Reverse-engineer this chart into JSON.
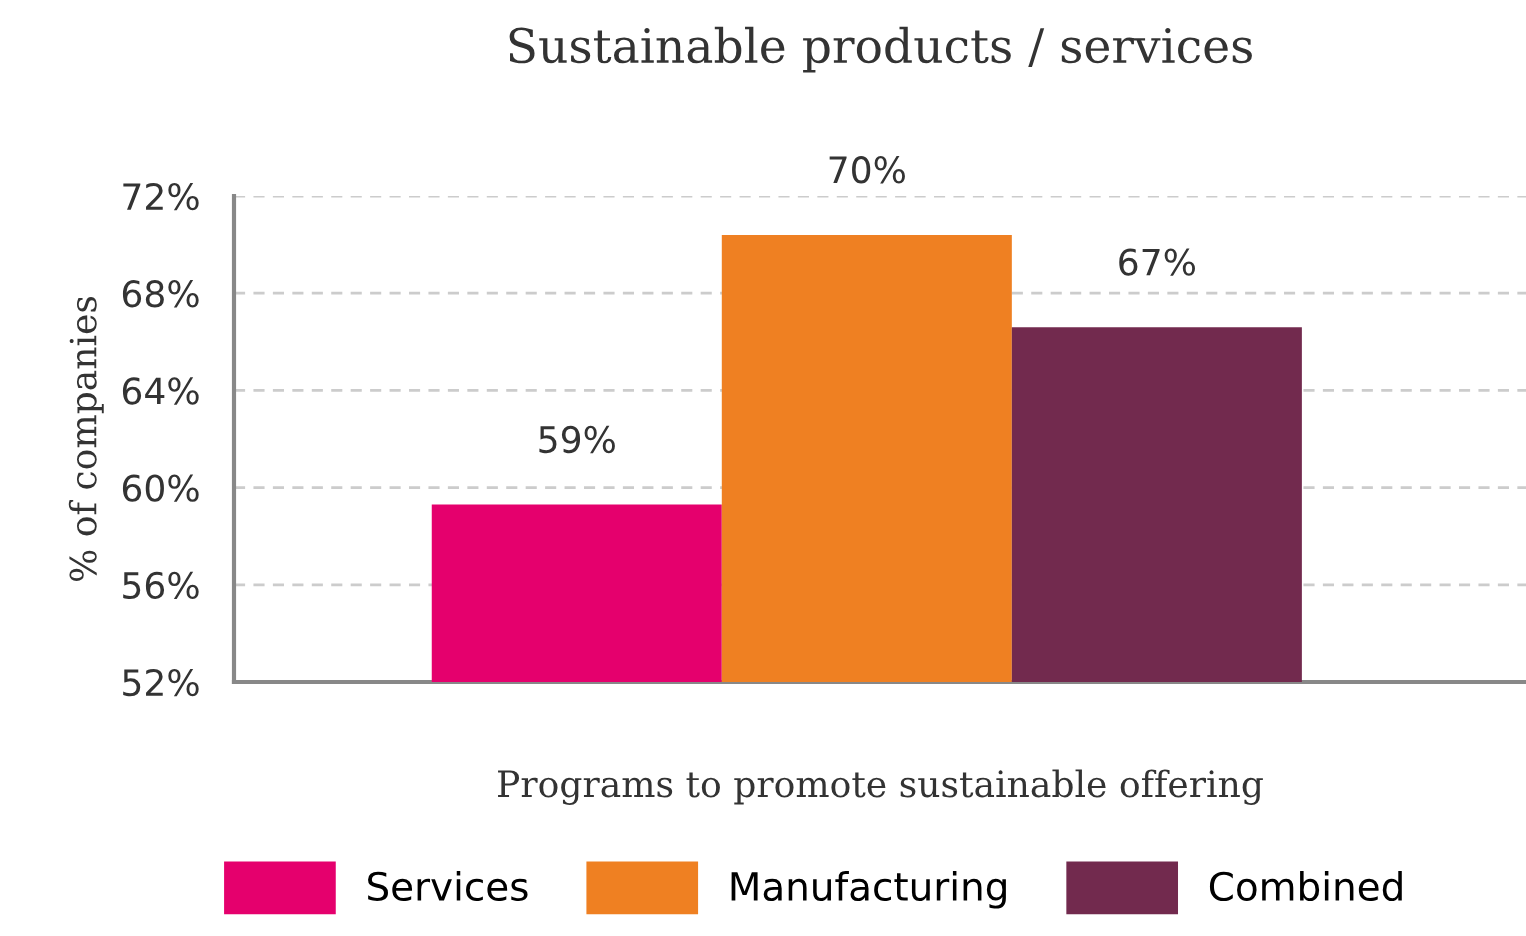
{
  "chart_data": {
    "type": "bar",
    "title": "Sustainable products / services",
    "xlabel": "Programs to promote sustainable offering",
    "ylabel": "% of companies",
    "categories": [
      null
    ],
    "series": [
      {
        "name": "Services",
        "color": "#e5006d",
        "values": [
          59.3
        ],
        "value_labels": [
          "59%"
        ]
      },
      {
        "name": "Manufacturing",
        "color": "#ef8022",
        "values": [
          70.4
        ],
        "value_labels": [
          "70%"
        ]
      },
      {
        "name": "Combined",
        "color": "#722a4e",
        "values": [
          66.6
        ],
        "value_labels": [
          "67%"
        ]
      }
    ],
    "ylim": [
      52,
      72
    ],
    "yticks": [
      {
        "value": 52,
        "label": "52%"
      },
      {
        "value": 56,
        "label": "56%"
      },
      {
        "value": 60,
        "label": "60%"
      },
      {
        "value": 64,
        "label": "64%"
      },
      {
        "value": 68,
        "label": "68%"
      },
      {
        "value": 72,
        "label": "72%"
      }
    ],
    "grid": "y",
    "legend": "bottom"
  }
}
